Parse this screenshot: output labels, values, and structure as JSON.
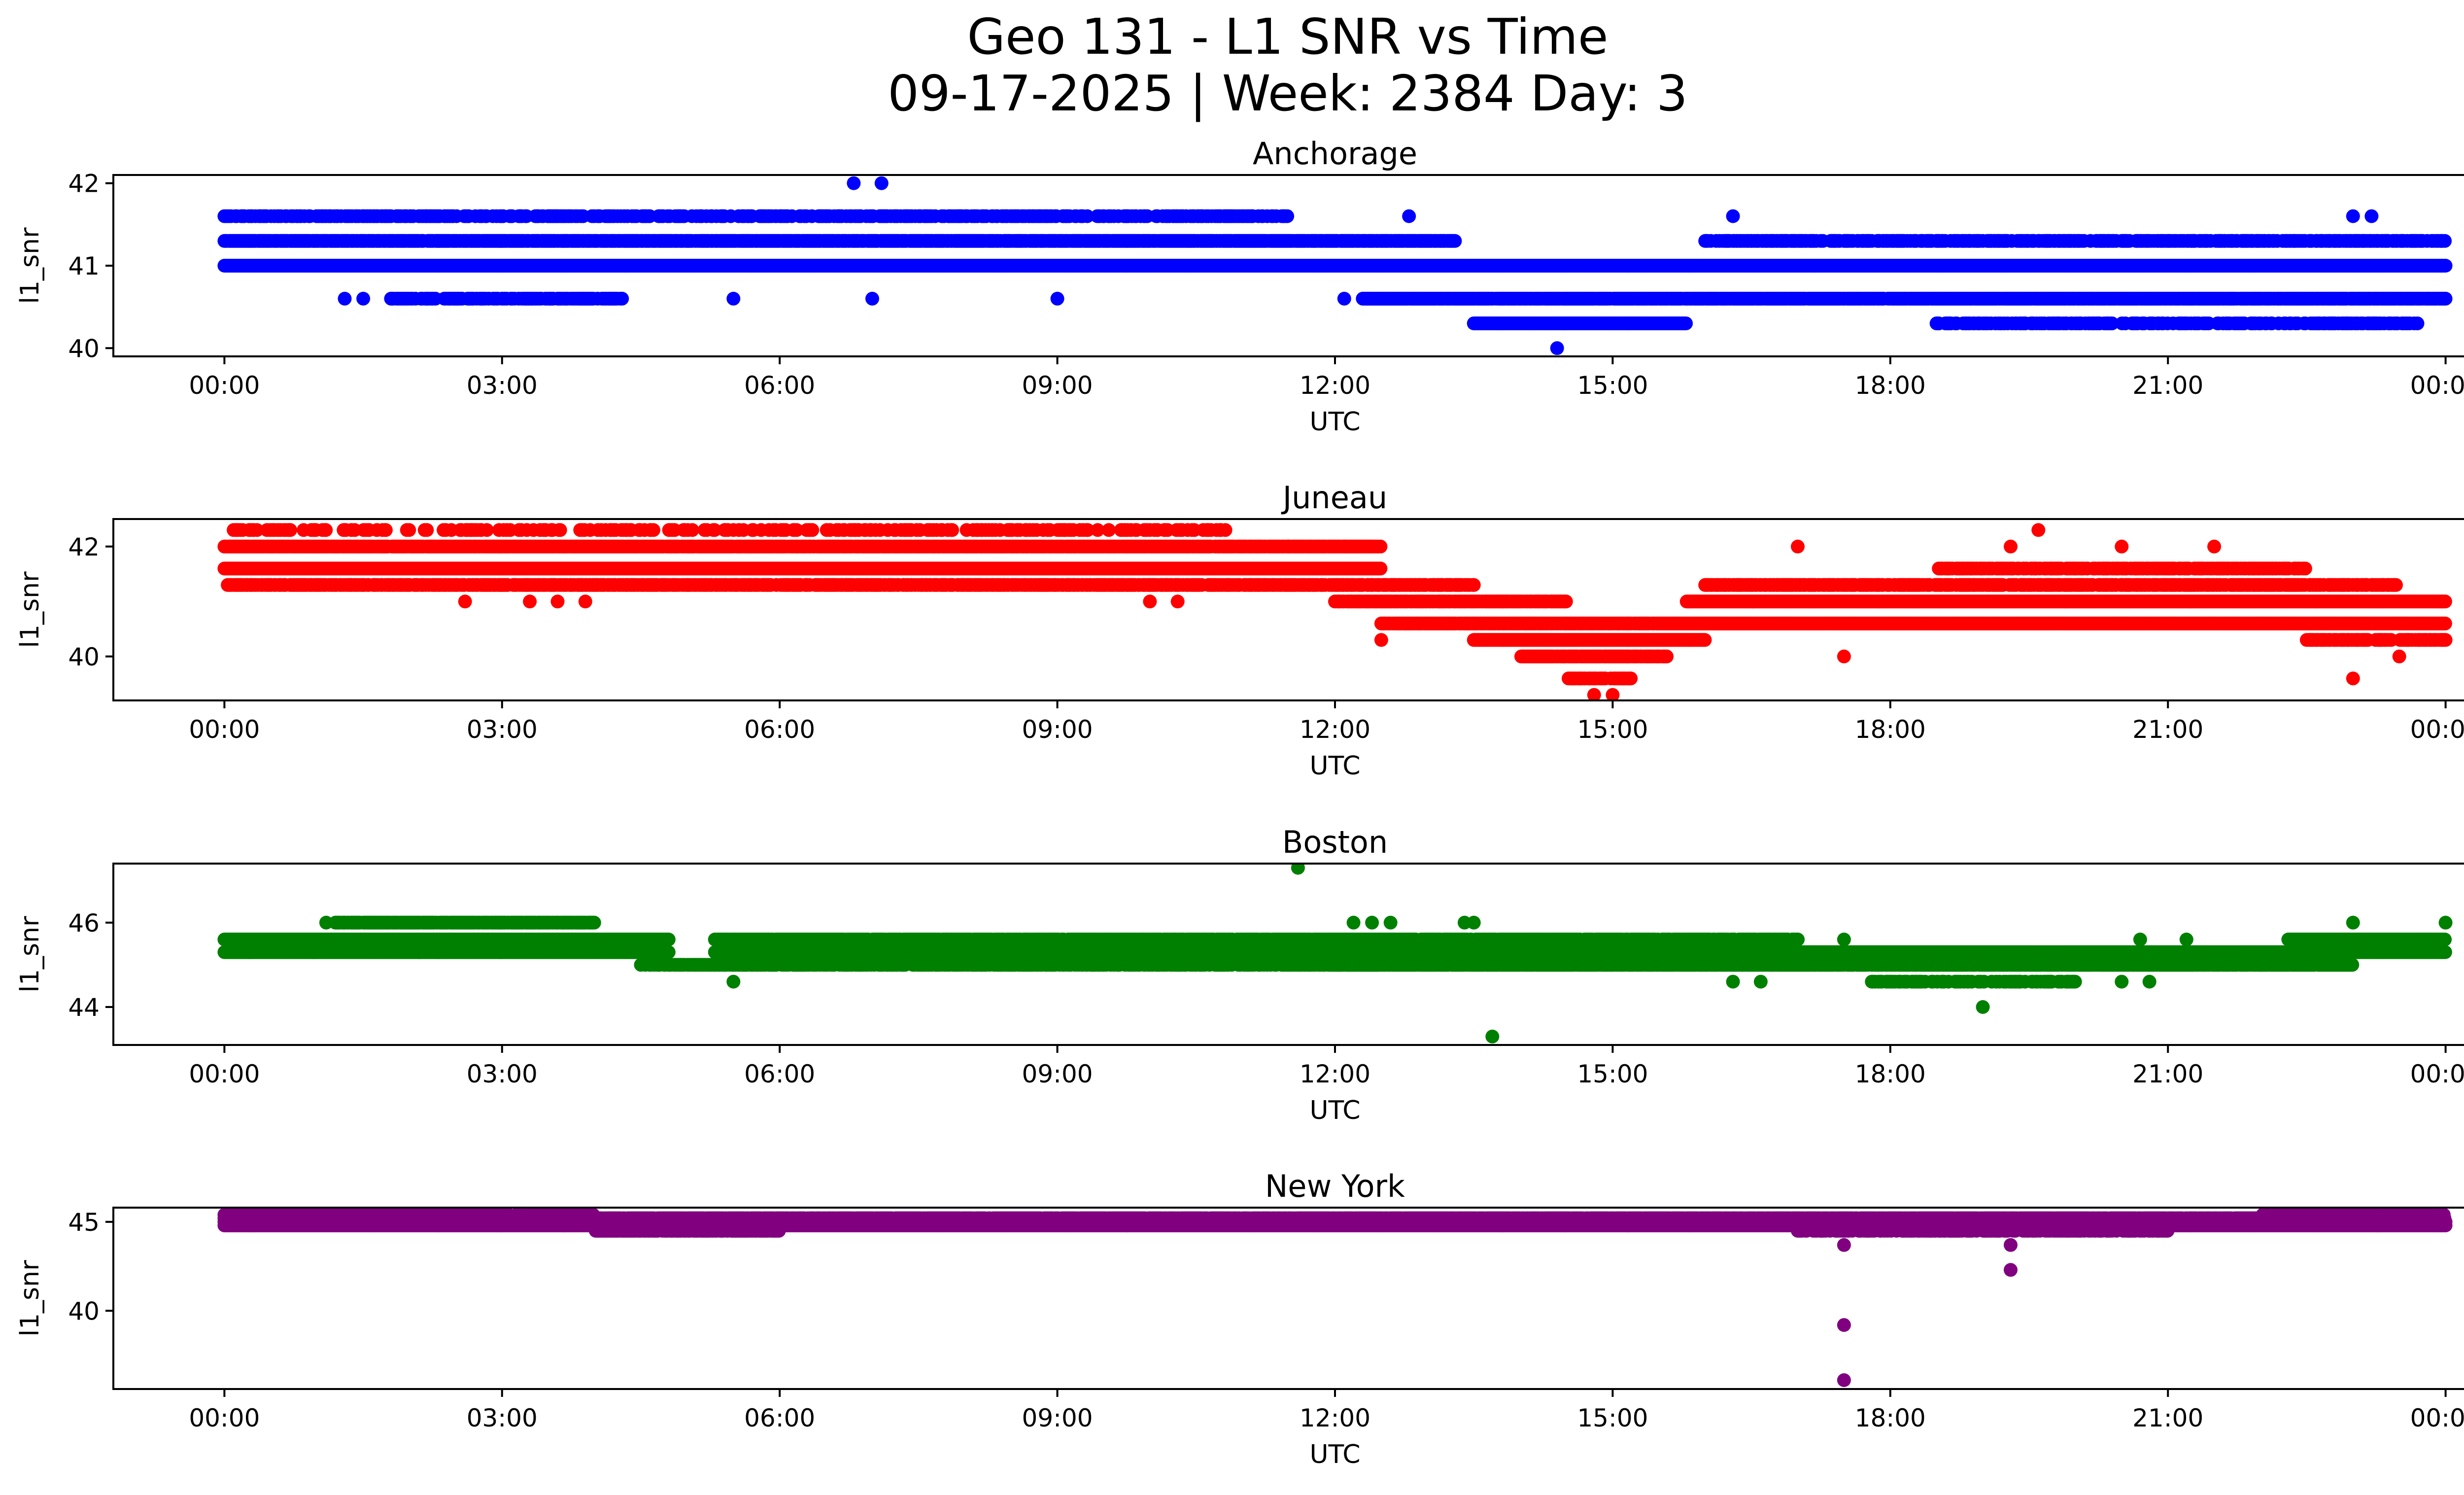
{
  "title": "Geo 131 - L1 SNR vs Time",
  "subtitle": "09-17-2025 | Week: 2384 Day: 3",
  "chart_data": [
    {
      "type": "scatter",
      "title": "Anchorage",
      "xlabel": "UTC",
      "ylabel": "l1_snr",
      "color": "#0000ff",
      "xlim": [
        -1.2,
        25.2
      ],
      "ylim": [
        39.9,
        42.1
      ],
      "xticks": [
        "00:00",
        "03:00",
        "06:00",
        "09:00",
        "12:00",
        "15:00",
        "18:00",
        "21:00",
        "00:00"
      ],
      "yticks": [
        40,
        41,
        42
      ],
      "series": [
        {
          "bands": [
            {
              "x0": 0.0,
              "x1": 24.0,
              "y": 41.0,
              "density": 1.0
            },
            {
              "x0": 0.0,
              "x1": 13.3,
              "y": 41.3,
              "density": 0.9
            },
            {
              "x0": 16.0,
              "x1": 24.0,
              "y": 41.3,
              "density": 0.6
            },
            {
              "x0": 12.3,
              "x1": 24.0,
              "y": 40.6,
              "density": 0.9
            },
            {
              "x0": 13.5,
              "x1": 15.8,
              "y": 40.3,
              "density": 1.0
            },
            {
              "x0": 18.5,
              "x1": 23.7,
              "y": 40.3,
              "density": 0.45
            },
            {
              "x0": 0.0,
              "x1": 11.5,
              "y": 41.6,
              "density": 0.45
            },
            {
              "x0": 1.8,
              "x1": 4.3,
              "y": 40.6,
              "density": 0.6
            }
          ],
          "points": [
            [
              1.3,
              40.6
            ],
            [
              1.5,
              40.6
            ],
            [
              5.5,
              40.6
            ],
            [
              7.0,
              40.6
            ],
            [
              9.0,
              40.6
            ],
            [
              12.1,
              40.6
            ],
            [
              1.1,
              41.6
            ],
            [
              2.9,
              41.6
            ],
            [
              12.8,
              41.6
            ],
            [
              16.3,
              41.6
            ],
            [
              23.0,
              41.6
            ],
            [
              23.2,
              41.6
            ],
            [
              6.8,
              42.0
            ],
            [
              7.1,
              42.0
            ],
            [
              14.4,
              40.0
            ],
            [
              14.7,
              41.0
            ],
            [
              15.3,
              41.0
            ]
          ]
        }
      ]
    },
    {
      "type": "scatter",
      "title": "Juneau",
      "xlabel": "UTC",
      "ylabel": "l1_snr",
      "color": "#ff0000",
      "xlim": [
        -1.2,
        25.2
      ],
      "ylim": [
        39.2,
        42.5
      ],
      "xticks": [
        "00:00",
        "03:00",
        "06:00",
        "09:00",
        "12:00",
        "15:00",
        "18:00",
        "21:00",
        "00:00"
      ],
      "yticks": [
        40,
        42
      ],
      "series": [
        {
          "bands": [
            {
              "x0": 0.0,
              "x1": 12.5,
              "y": 42.0,
              "density": 0.9
            },
            {
              "x0": 0.0,
              "x1": 12.5,
              "y": 41.6,
              "density": 1.0
            },
            {
              "x0": 0.0,
              "x1": 13.5,
              "y": 41.3,
              "density": 0.7
            },
            {
              "x0": 12.0,
              "x1": 14.5,
              "y": 41.0,
              "density": 0.8
            },
            {
              "x0": 12.5,
              "x1": 15.5,
              "y": 40.6,
              "density": 0.8
            },
            {
              "x0": 13.5,
              "x1": 16.0,
              "y": 40.3,
              "density": 1.0
            },
            {
              "x0": 14.0,
              "x1": 15.6,
              "y": 40.0,
              "density": 0.9
            },
            {
              "x0": 15.5,
              "x1": 24.0,
              "y": 40.6,
              "density": 1.0
            },
            {
              "x0": 15.8,
              "x1": 24.0,
              "y": 41.0,
              "density": 1.0
            },
            {
              "x0": 16.0,
              "x1": 23.5,
              "y": 41.3,
              "density": 0.7
            },
            {
              "x0": 18.5,
              "x1": 22.5,
              "y": 41.6,
              "density": 0.6
            },
            {
              "x0": 22.5,
              "x1": 24.0,
              "y": 40.3,
              "density": 0.7
            },
            {
              "x0": 0.1,
              "x1": 11.0,
              "y": 42.3,
              "density": 0.25
            },
            {
              "x0": 14.5,
              "x1": 15.2,
              "y": 39.6,
              "density": 0.8
            }
          ],
          "points": [
            [
              2.6,
              41.0
            ],
            [
              3.3,
              41.0
            ],
            [
              3.6,
              41.0
            ],
            [
              3.9,
              41.0
            ],
            [
              10.0,
              41.0
            ],
            [
              10.3,
              41.0
            ],
            [
              14.8,
              39.3
            ],
            [
              15.0,
              39.3
            ],
            [
              17.0,
              42.0
            ],
            [
              19.6,
              42.3
            ],
            [
              23.0,
              39.6
            ],
            [
              12.5,
              40.3
            ],
            [
              17.5,
              40.0
            ],
            [
              23.5,
              40.0
            ],
            [
              19.3,
              42.0
            ],
            [
              20.5,
              42.0
            ],
            [
              21.5,
              42.0
            ],
            [
              11.5,
              42.0
            ],
            [
              12.1,
              42.0
            ]
          ]
        }
      ]
    },
    {
      "type": "scatter",
      "title": "Boston",
      "xlabel": "UTC",
      "ylabel": "l1_snr",
      "color": "#008000",
      "xlim": [
        -1.2,
        25.2
      ],
      "ylim": [
        43.1,
        47.4
      ],
      "xticks": [
        "00:00",
        "03:00",
        "06:00",
        "09:00",
        "12:00",
        "15:00",
        "18:00",
        "21:00",
        "00:00"
      ],
      "yticks": [
        44,
        46
      ],
      "series": [
        {
          "bands": [
            {
              "x0": 0.0,
              "x1": 4.8,
              "y": 45.6,
              "density": 1.0
            },
            {
              "x0": 0.0,
              "x1": 4.8,
              "y": 45.3,
              "density": 1.0
            },
            {
              "x0": 1.2,
              "x1": 4.0,
              "y": 46.0,
              "density": 0.9
            },
            {
              "x0": 4.5,
              "x1": 12.5,
              "y": 45.0,
              "density": 0.6
            },
            {
              "x0": 5.3,
              "x1": 24.0,
              "y": 45.3,
              "density": 1.0
            },
            {
              "x0": 5.3,
              "x1": 17.0,
              "y": 45.6,
              "density": 0.8
            },
            {
              "x0": 12.0,
              "x1": 23.0,
              "y": 45.0,
              "density": 0.9
            },
            {
              "x0": 22.3,
              "x1": 24.0,
              "y": 45.6,
              "density": 1.0
            },
            {
              "x0": 17.8,
              "x1": 20.0,
              "y": 44.6,
              "density": 0.45
            }
          ],
          "points": [
            [
              11.6,
              47.3
            ],
            [
              13.7,
              43.3
            ],
            [
              19.0,
              44.0
            ],
            [
              12.2,
              46.0
            ],
            [
              12.4,
              46.0
            ],
            [
              12.6,
              46.0
            ],
            [
              13.4,
              46.0
            ],
            [
              13.5,
              46.0
            ],
            [
              23.0,
              46.0
            ],
            [
              24.0,
              46.0
            ],
            [
              5.5,
              44.6
            ],
            [
              16.3,
              44.6
            ],
            [
              16.6,
              44.6
            ],
            [
              20.5,
              44.6
            ],
            [
              20.8,
              44.6
            ],
            [
              1.1,
              46.0
            ],
            [
              2.1,
              45.3
            ],
            [
              12.4,
              45.0
            ],
            [
              17.0,
              45.6
            ],
            [
              17.5,
              45.6
            ],
            [
              20.7,
              45.6
            ],
            [
              21.2,
              45.6
            ]
          ]
        }
      ]
    },
    {
      "type": "scatter",
      "title": "New York",
      "xlabel": "UTC",
      "ylabel": "l1_snr",
      "color": "#800080",
      "xlim": [
        -1.2,
        25.2
      ],
      "ylim": [
        35.6,
        45.8
      ],
      "xticks": [
        "00:00",
        "03:00",
        "06:00",
        "09:00",
        "12:00",
        "15:00",
        "18:00",
        "21:00",
        "00:00"
      ],
      "yticks": [
        40,
        45
      ],
      "series": [
        {
          "bands": [
            {
              "x0": 0.0,
              "x1": 24.0,
              "y": 45.0,
              "density": 1.0
            },
            {
              "x0": 0.0,
              "x1": 24.0,
              "y": 44.8,
              "density": 1.0
            },
            {
              "x0": 0.0,
              "x1": 24.0,
              "y": 45.2,
              "density": 0.9
            },
            {
              "x0": 0.0,
              "x1": 4.0,
              "y": 45.4,
              "density": 0.6
            },
            {
              "x0": 4.0,
              "x1": 6.0,
              "y": 44.5,
              "density": 0.8
            },
            {
              "x0": 17.0,
              "x1": 21.0,
              "y": 44.5,
              "density": 0.5
            },
            {
              "x0": 22.0,
              "x1": 24.0,
              "y": 45.4,
              "density": 0.5
            }
          ],
          "points": [
            [
              17.5,
              39.2
            ],
            [
              17.5,
              36.1
            ],
            [
              19.3,
              42.3
            ],
            [
              17.5,
              43.7
            ],
            [
              19.3,
              43.7
            ],
            [
              23.5,
              45.6
            ],
            [
              2.6,
              45.6
            ]
          ]
        }
      ]
    }
  ]
}
